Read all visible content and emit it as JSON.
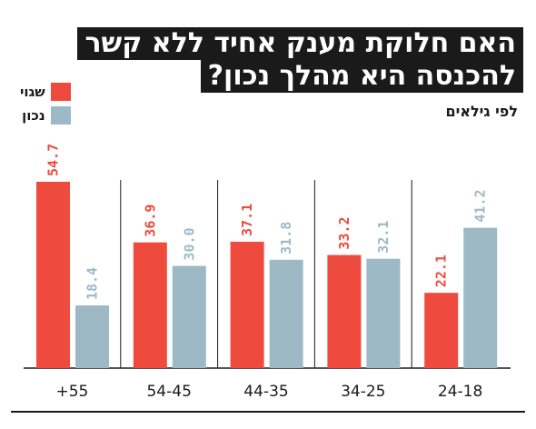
{
  "chart_data": {
    "type": "bar",
    "title_lines": [
      "האם חלוקת מענק אחיד ללא קשר",
      "להכנסה היא מהלך נכון?"
    ],
    "subtitle": "לפי גילאים",
    "categories": [
      "+55",
      "54-45",
      "44-35",
      "34-25",
      "24-18"
    ],
    "series": [
      {
        "name": "שגוי",
        "color": "#ee4b3e",
        "values": [
          54.7,
          36.9,
          37.1,
          33.2,
          22.1
        ],
        "labels": [
          "54.7",
          "36.9",
          "37.1",
          "33.2",
          "22.1"
        ]
      },
      {
        "name": "נכון",
        "color": "#9db9c6",
        "values": [
          18.4,
          30.0,
          31.8,
          32.1,
          41.2
        ],
        "labels": [
          "18.4",
          "30.0",
          "31.8",
          "32.1",
          "41.2"
        ]
      }
    ],
    "ylim": [
      0,
      60
    ],
    "grid": false,
    "legend_position": "top-left"
  }
}
